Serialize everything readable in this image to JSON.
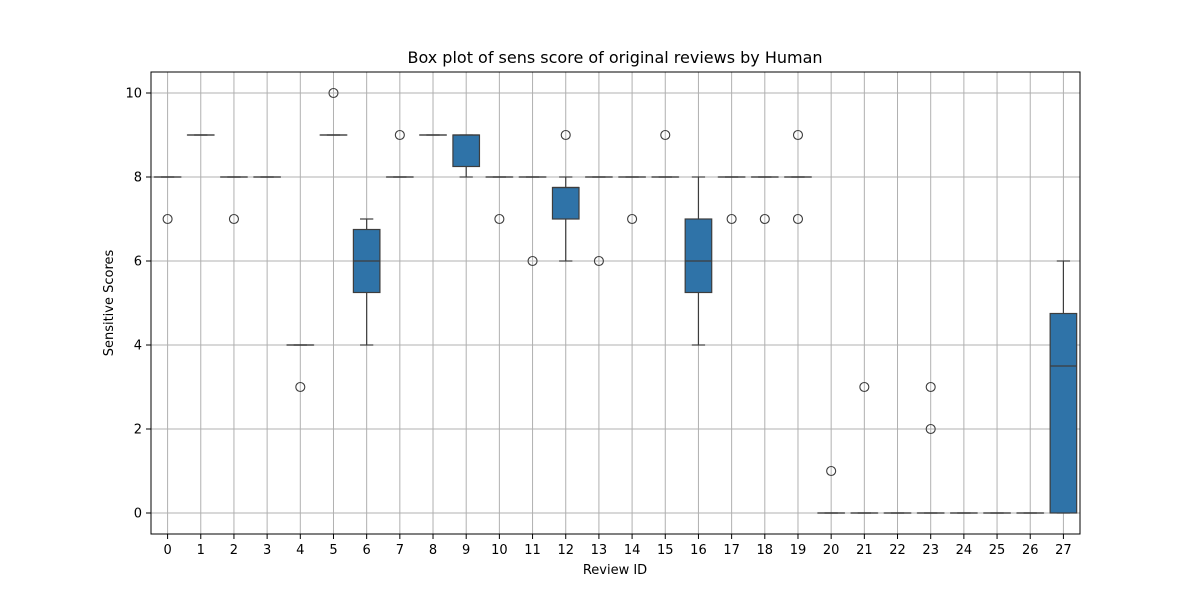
{
  "chart_data": {
    "type": "box",
    "title": "Box plot of sens score of original reviews by Human",
    "xlabel": "Review ID",
    "ylabel": "Sensitive Scores",
    "ylim": [
      -0.5,
      10.5
    ],
    "yticks": [
      0,
      2,
      4,
      6,
      8,
      10
    ],
    "grid": true,
    "box_color": "#2f73a8",
    "line_color": "#3d3d3d",
    "grid_color": "#b0b0b0",
    "categories": [
      "0",
      "1",
      "2",
      "3",
      "4",
      "5",
      "6",
      "7",
      "8",
      "9",
      "10",
      "11",
      "12",
      "13",
      "14",
      "15",
      "16",
      "17",
      "18",
      "19",
      "20",
      "21",
      "22",
      "23",
      "24",
      "25",
      "26",
      "27"
    ],
    "boxes": [
      {
        "id": "0",
        "q1": 8,
        "median": 8,
        "q3": 8,
        "whisker_low": 8,
        "whisker_high": 8,
        "outliers": [
          7
        ]
      },
      {
        "id": "1",
        "q1": 9,
        "median": 9,
        "q3": 9,
        "whisker_low": 9,
        "whisker_high": 9,
        "outliers": []
      },
      {
        "id": "2",
        "q1": 8,
        "median": 8,
        "q3": 8,
        "whisker_low": 8,
        "whisker_high": 8,
        "outliers": [
          7
        ]
      },
      {
        "id": "3",
        "q1": 8,
        "median": 8,
        "q3": 8,
        "whisker_low": 8,
        "whisker_high": 8,
        "outliers": []
      },
      {
        "id": "4",
        "q1": 4,
        "median": 4,
        "q3": 4,
        "whisker_low": 4,
        "whisker_high": 4,
        "outliers": [
          3
        ]
      },
      {
        "id": "5",
        "q1": 9,
        "median": 9,
        "q3": 9,
        "whisker_low": 9,
        "whisker_high": 9,
        "outliers": [
          10
        ]
      },
      {
        "id": "6",
        "q1": 5.25,
        "median": 6,
        "q3": 6.75,
        "whisker_low": 4,
        "whisker_high": 7,
        "outliers": []
      },
      {
        "id": "7",
        "q1": 8,
        "median": 8,
        "q3": 8,
        "whisker_low": 8,
        "whisker_high": 8,
        "outliers": [
          9
        ]
      },
      {
        "id": "8",
        "q1": 9,
        "median": 9,
        "q3": 9,
        "whisker_low": 9,
        "whisker_high": 9,
        "outliers": []
      },
      {
        "id": "9",
        "q1": 8.25,
        "median": 9,
        "q3": 9,
        "whisker_low": 8,
        "whisker_high": 9,
        "outliers": []
      },
      {
        "id": "10",
        "q1": 8,
        "median": 8,
        "q3": 8,
        "whisker_low": 8,
        "whisker_high": 8,
        "outliers": [
          7
        ]
      },
      {
        "id": "11",
        "q1": 8,
        "median": 8,
        "q3": 8,
        "whisker_low": 8,
        "whisker_high": 8,
        "outliers": [
          6
        ]
      },
      {
        "id": "12",
        "q1": 7,
        "median": 7.75,
        "q3": 7.75,
        "whisker_low": 6,
        "whisker_high": 8,
        "outliers": [
          9
        ]
      },
      {
        "id": "13",
        "q1": 8,
        "median": 8,
        "q3": 8,
        "whisker_low": 8,
        "whisker_high": 8,
        "outliers": [
          6
        ]
      },
      {
        "id": "14",
        "q1": 8,
        "median": 8,
        "q3": 8,
        "whisker_low": 8,
        "whisker_high": 8,
        "outliers": [
          7
        ]
      },
      {
        "id": "15",
        "q1": 8,
        "median": 8,
        "q3": 8,
        "whisker_low": 8,
        "whisker_high": 8,
        "outliers": [
          9
        ]
      },
      {
        "id": "16",
        "q1": 5.25,
        "median": 6,
        "q3": 7,
        "whisker_low": 4,
        "whisker_high": 8,
        "outliers": []
      },
      {
        "id": "17",
        "q1": 8,
        "median": 8,
        "q3": 8,
        "whisker_low": 8,
        "whisker_high": 8,
        "outliers": [
          7
        ]
      },
      {
        "id": "18",
        "q1": 8,
        "median": 8,
        "q3": 8,
        "whisker_low": 8,
        "whisker_high": 8,
        "outliers": [
          7
        ]
      },
      {
        "id": "19",
        "q1": 8,
        "median": 8,
        "q3": 8,
        "whisker_low": 8,
        "whisker_high": 8,
        "outliers": [
          9,
          7
        ]
      },
      {
        "id": "20",
        "q1": 0,
        "median": 0,
        "q3": 0,
        "whisker_low": 0,
        "whisker_high": 0,
        "outliers": [
          1
        ]
      },
      {
        "id": "21",
        "q1": 0,
        "median": 0,
        "q3": 0,
        "whisker_low": 0,
        "whisker_high": 0,
        "outliers": [
          3
        ]
      },
      {
        "id": "22",
        "q1": 0,
        "median": 0,
        "q3": 0,
        "whisker_low": 0,
        "whisker_high": 0,
        "outliers": []
      },
      {
        "id": "23",
        "q1": 0,
        "median": 0,
        "q3": 0,
        "whisker_low": 0,
        "whisker_high": 0,
        "outliers": [
          3,
          2
        ]
      },
      {
        "id": "24",
        "q1": 0,
        "median": 0,
        "q3": 0,
        "whisker_low": 0,
        "whisker_high": 0,
        "outliers": []
      },
      {
        "id": "25",
        "q1": 0,
        "median": 0,
        "q3": 0,
        "whisker_low": 0,
        "whisker_high": 0,
        "outliers": []
      },
      {
        "id": "26",
        "q1": 0,
        "median": 0,
        "q3": 0,
        "whisker_low": 0,
        "whisker_high": 0,
        "outliers": []
      },
      {
        "id": "27",
        "q1": 0,
        "median": 3.5,
        "q3": 4.75,
        "whisker_low": 0,
        "whisker_high": 6,
        "outliers": []
      }
    ]
  }
}
